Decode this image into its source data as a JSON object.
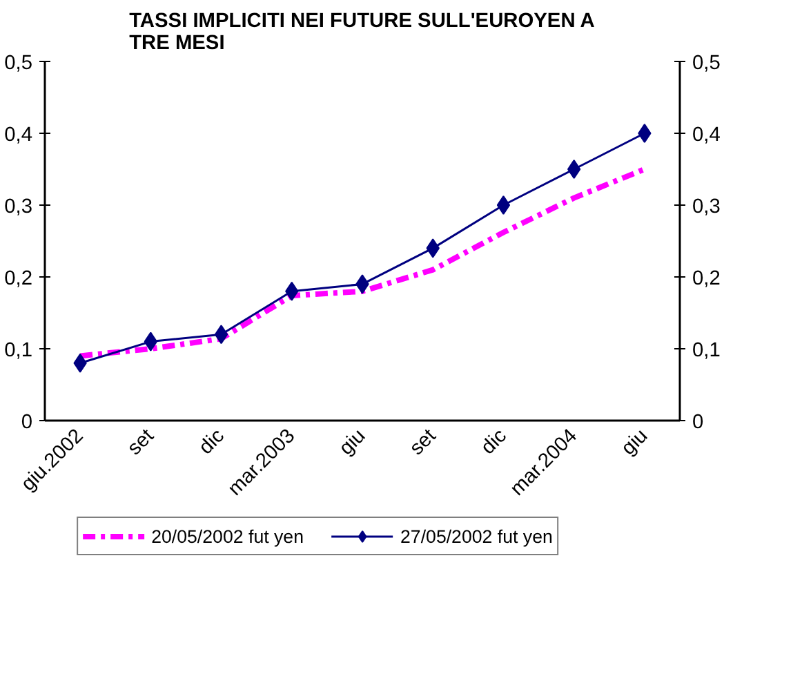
{
  "chart_data": {
    "type": "line",
    "title": "TASSI IMPLICITI NEI FUTURE SULL'EUROYEN A TRE MESI",
    "categories": [
      "giu.2002",
      "set",
      "dic",
      "mar.2003",
      "giu",
      "set",
      "dic",
      "mar.2004",
      "giu"
    ],
    "series": [
      {
        "name": "20/05/2002 fut yen",
        "color": "#ff00ff",
        "line_style": "dashed",
        "marker": "none",
        "values": [
          0.09,
          0.1,
          0.114,
          0.174,
          0.18,
          0.21,
          0.262,
          0.31,
          0.35
        ]
      },
      {
        "name": "27/05/2002 fut yen",
        "color": "#000080",
        "line_style": "solid",
        "marker": "diamond",
        "values": [
          0.08,
          0.11,
          0.12,
          0.18,
          0.19,
          0.24,
          0.3,
          0.35,
          0.4
        ]
      }
    ],
    "ylim": [
      0,
      0.5
    ],
    "yticks": [
      {
        "value": 0,
        "label": "0"
      },
      {
        "value": 0.1,
        "label": "0,1"
      },
      {
        "value": 0.2,
        "label": "0,2"
      },
      {
        "value": 0.3,
        "label": "0,3"
      },
      {
        "value": 0.4,
        "label": "0,4"
      },
      {
        "value": 0.5,
        "label": "0,5"
      }
    ],
    "y2lim": [
      0,
      0.5
    ],
    "y2ticks": [
      {
        "value": 0,
        "label": "0"
      },
      {
        "value": 0.1,
        "label": "0,1"
      },
      {
        "value": 0.2,
        "label": "0,2"
      },
      {
        "value": 0.3,
        "label": "0,3"
      },
      {
        "value": 0.4,
        "label": "0,4"
      },
      {
        "value": 0.5,
        "label": "0,5"
      }
    ],
    "grid": false,
    "legend": "bottom"
  }
}
